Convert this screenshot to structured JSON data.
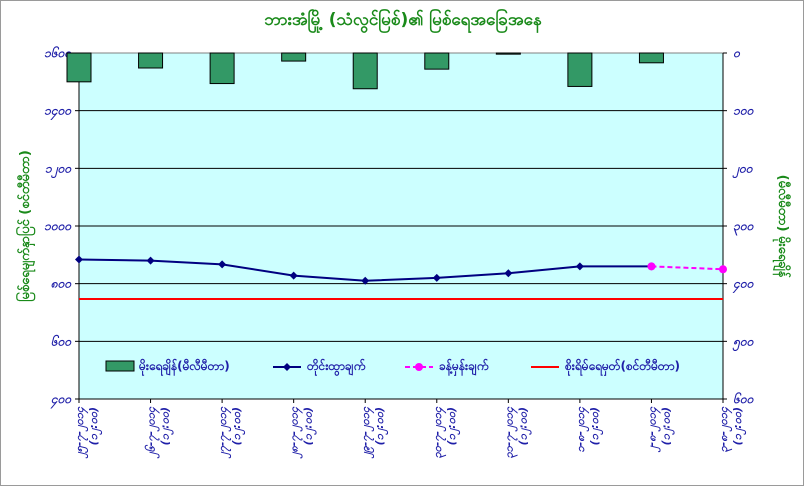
{
  "title": "ဘားအံမြို့ (သံလွင်မြစ်)၏ မြစ်ရေအခြေအနေ",
  "colors": {
    "plot_bg": "#ccffff",
    "rain_bar": "#339966",
    "observed": "#000080",
    "forecast": "#ff00ff",
    "danger": "#ff0000",
    "title": "#1a8a1a",
    "ticks": "#1f1fa8"
  },
  "chart_data": {
    "type": "bar+line",
    "title": "ဘားအံမြို့ (သံလွင်မြစ်)၏ မြစ်ရေအခြေအနေ",
    "ylabel_left": "မြစ်ရေမျက်နှာပြင် (စင်တီမီတာ)",
    "ylabel_right": "(မီလီမီတာ) မိုးရေချိန်",
    "ylim_left": [
      400,
      1600
    ],
    "ylim_right": [
      0,
      600
    ],
    "right_axis_inverted": true,
    "yticks_left": [
      "၄၀၀",
      "၆၀၀",
      "၈၀၀",
      "၁၀၀၀",
      "၁၂၀၀",
      "၁၄၀၀",
      "၁၆၀၀"
    ],
    "yticks_right": [
      "၀",
      "၁၀၀",
      "၂၀၀",
      "၃၀၀",
      "၄၀၀",
      "၅၀၀",
      "၆၀၀"
    ],
    "yticks_left_values": [
      400,
      600,
      800,
      1000,
      1200,
      1400,
      1600
    ],
    "yticks_right_values": [
      0,
      100,
      200,
      300,
      400,
      500,
      600
    ],
    "categories": [
      [
        "၂၅-၇-၂၀၁၄",
        "(၁၂:၀၀)"
      ],
      [
        "၂၆-၇-၂၀၁၄",
        "(၁၂:၀၀)"
      ],
      [
        "၂၇-၇-၂၀၁၄",
        "(၁၂:၀၀)"
      ],
      [
        "၂၈-၇-၂၀၁၄",
        "(၁၂:၀၀)"
      ],
      [
        "၂၉-၇-၂၀၁၄",
        "(၁၂:၀၀)"
      ],
      [
        "၃၀-၇-၂၀၁၄",
        "(၁၂:၀၀)"
      ],
      [
        "၃၁-၇-၂၀၁၄",
        "(၁၂:၀၀)"
      ],
      [
        "၁-၈-၂၀၁၄",
        "(၁၂:၀၀)"
      ],
      [
        "၂-၈-၂၀၁၄",
        "(၁၂:၀၀)"
      ],
      [
        "၃-၈-၂၀၁၄",
        "(၁၂:၀၀)"
      ]
    ],
    "series": [
      {
        "name": "မိုးရေချိန်(မီလီမီတာ)",
        "type": "bar",
        "axis": "right",
        "values": [
          50,
          26,
          53,
          14,
          62,
          28,
          2,
          58,
          17,
          null
        ]
      },
      {
        "name": "တိုင်းထွာချက်",
        "type": "line",
        "axis": "left",
        "values": [
          884,
          880,
          867,
          828,
          810,
          820,
          836,
          860,
          860,
          null
        ]
      },
      {
        "name": "ခန့်မှန်းချက်",
        "type": "line",
        "axis": "left",
        "dashed": true,
        "values": [
          null,
          null,
          null,
          null,
          null,
          null,
          null,
          null,
          860,
          850
        ]
      },
      {
        "name": "စိုးရိမ်ရေမှတ်(စင်တီမီတာ)",
        "type": "hline",
        "axis": "left",
        "value": 747
      }
    ],
    "grid": true,
    "legend": "bottom-inside"
  }
}
